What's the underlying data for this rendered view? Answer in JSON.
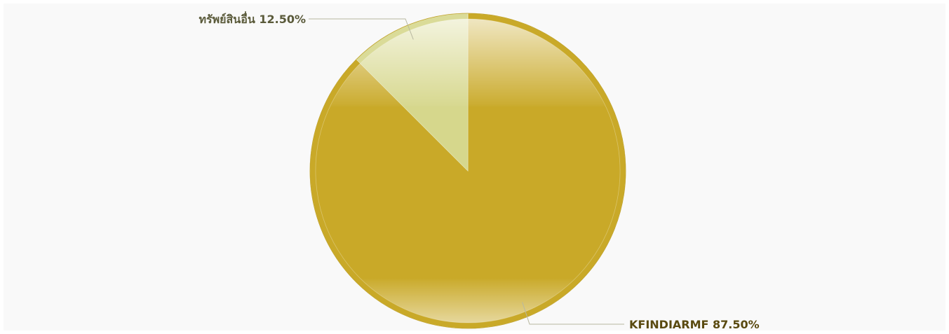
{
  "chart_data": {
    "type": "pie",
    "slices": [
      {
        "name": "KFINDIARMF",
        "value": 87.5,
        "label": "KFINDIARMF 87.50%",
        "color": "#c9a928",
        "label_color": "#5a4a10"
      },
      {
        "name": "ทรัพย์สินอื่น",
        "value": 12.5,
        "label": "ทรัพย์สินอื่น 12.50%",
        "color": "#d6d78c",
        "label_color": "#5a5a3a"
      }
    ],
    "start_angle": "12 o'clock",
    "direction": "clockwise"
  },
  "colors": {
    "background": "#f9f9f9",
    "rim": "#c9a928",
    "leader_line": "#b8b8a0"
  }
}
